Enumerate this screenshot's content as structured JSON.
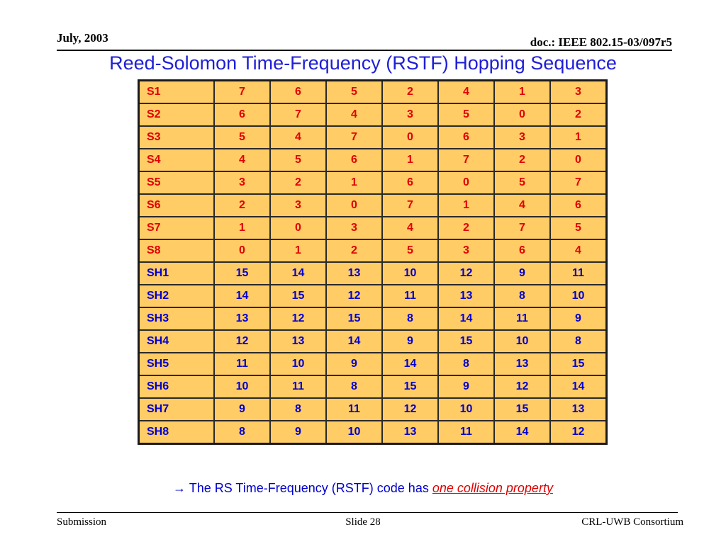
{
  "header": {
    "date": "July, 2003",
    "doc": "doc.: IEEE 802.15-03/097r5"
  },
  "title": "Reed-Solomon Time-Frequency (RSTF) Hopping Sequence",
  "table": {
    "rows": [
      {
        "label": "S1",
        "color": "red",
        "values": [
          "7",
          "6",
          "5",
          "2",
          "4",
          "1",
          "3"
        ]
      },
      {
        "label": "S2",
        "color": "red",
        "values": [
          "6",
          "7",
          "4",
          "3",
          "5",
          "0",
          "2"
        ]
      },
      {
        "label": "S3",
        "color": "red",
        "values": [
          "5",
          "4",
          "7",
          "0",
          "6",
          "3",
          "1"
        ]
      },
      {
        "label": "S4",
        "color": "red",
        "values": [
          "4",
          "5",
          "6",
          "1",
          "7",
          "2",
          "0"
        ]
      },
      {
        "label": "S5",
        "color": "red",
        "values": [
          "3",
          "2",
          "1",
          "6",
          "0",
          "5",
          "7"
        ]
      },
      {
        "label": "S6",
        "color": "red",
        "values": [
          "2",
          "3",
          "0",
          "7",
          "1",
          "4",
          "6"
        ]
      },
      {
        "label": "S7",
        "color": "red",
        "values": [
          "1",
          "0",
          "3",
          "4",
          "2",
          "7",
          "5"
        ]
      },
      {
        "label": "S8",
        "color": "red",
        "values": [
          "0",
          "1",
          "2",
          "5",
          "3",
          "6",
          "4"
        ]
      },
      {
        "label": "SH1",
        "color": "blue",
        "values": [
          "15",
          "14",
          "13",
          "10",
          "12",
          "9",
          "11"
        ]
      },
      {
        "label": "SH2",
        "color": "blue",
        "values": [
          "14",
          "15",
          "12",
          "11",
          "13",
          "8",
          "10"
        ]
      },
      {
        "label": "SH3",
        "color": "blue",
        "values": [
          "13",
          "12",
          "15",
          "8",
          "14",
          "11",
          "9"
        ]
      },
      {
        "label": "SH4",
        "color": "blue",
        "values": [
          "12",
          "13",
          "14",
          "9",
          "15",
          "10",
          "8"
        ]
      },
      {
        "label": "SH5",
        "color": "blue",
        "values": [
          "11",
          "10",
          "9",
          "14",
          "8",
          "13",
          "15"
        ]
      },
      {
        "label": "SH6",
        "color": "blue",
        "values": [
          "10",
          "11",
          "8",
          "15",
          "9",
          "12",
          "14"
        ]
      },
      {
        "label": "SH7",
        "color": "blue",
        "values": [
          "9",
          "8",
          "11",
          "12",
          "10",
          "15",
          "13"
        ]
      },
      {
        "label": "SH8",
        "color": "blue",
        "values": [
          "8",
          "9",
          "10",
          "13",
          "11",
          "14",
          "12"
        ]
      }
    ]
  },
  "note": {
    "arrow": "→",
    "text": " The RS Time-Frequency (RSTF) code has ",
    "emphasis": "one collision property"
  },
  "footer": {
    "left": "Submission",
    "center": "Slide 28",
    "right": "CRL-UWB Consortium"
  },
  "colors": {
    "title": "#1f1fd6",
    "red_rows": "#e00000",
    "blue_rows": "#0000d0",
    "cell_fill": "#ffcc66"
  }
}
